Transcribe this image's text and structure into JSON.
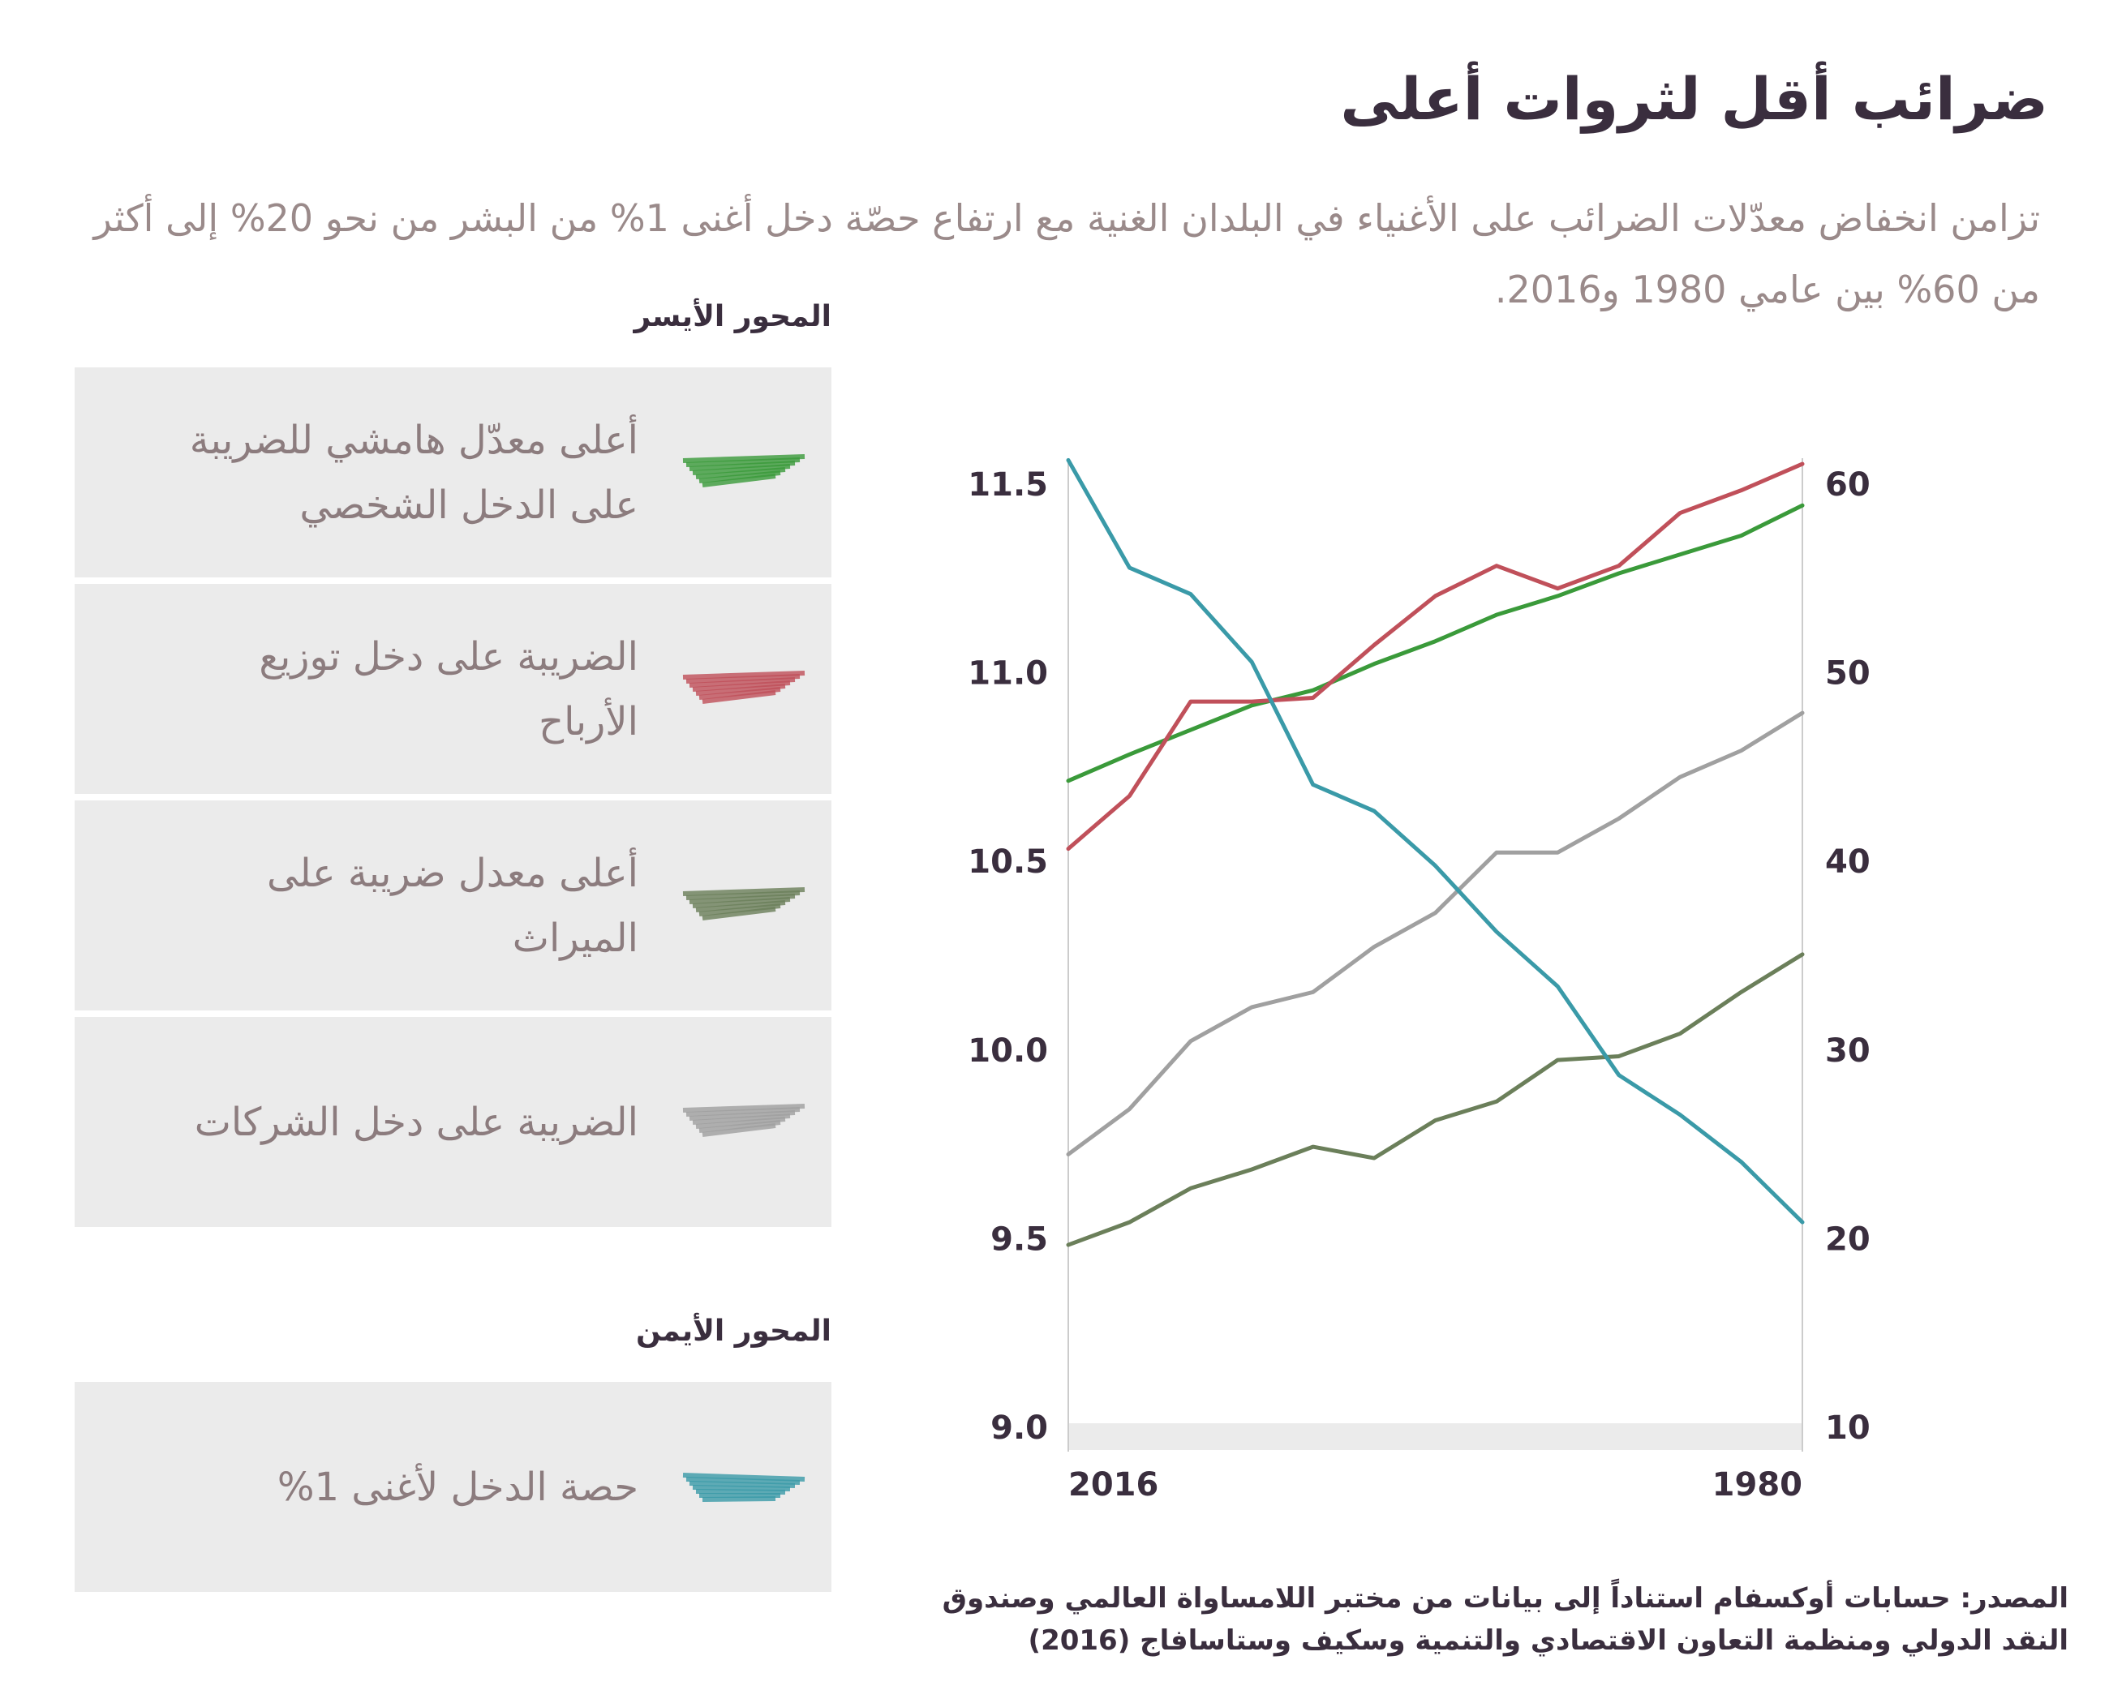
{
  "title": "ضرائب أقل لثروات أعلى",
  "subtitle": "تزامن انخفاض معدّلات الضرائب على الأغنياء في البلدان الغنية مع ارتفاع حصّة دخل أغنى 1% من البشر من نحو 20% إلى أكثر من 60% بين عامي 1980 و2016.",
  "source": "المصدر: حسابات أوكسفام استناداً إلى بيانات من مختبر اللامساواة العالمي وصندوق النقد الدولي ومنظمة التعاون الاقتصادي والتنمية وسكيف وستاسافاج (2016)",
  "chart_data": {
    "type": "line",
    "y_legend_title": "المحور الأيسر",
    "y2_legend_title": "المحور الأيمن",
    "x": [
      2016,
      2013,
      2010,
      2007,
      2004,
      2001,
      1998,
      1995,
      1992,
      1989,
      1986,
      1983,
      1980
    ],
    "xlim": [
      2016,
      1980
    ],
    "xticks": [
      2016,
      1980
    ],
    "ylim": [
      9,
      11.5
    ],
    "yticks": [
      {
        "value": 9,
        "label": "9.0"
      },
      9.5,
      {
        "value": 10,
        "label": "10.0"
      },
      10.5,
      {
        "value": 11,
        "label": "11.0"
      },
      11.5
    ],
    "y2lim": [
      10,
      60
    ],
    "y2ticks": [
      10,
      20,
      30,
      40,
      50,
      60
    ],
    "series": [
      {
        "name": "أعلى معدّل هامشي للضريبة على الدخل الشخصي",
        "color": "#3a9a3a",
        "values": [
          10.72,
          10.79,
          10.855,
          10.92,
          10.96,
          11.03,
          11.09,
          11.16,
          11.21,
          11.27,
          11.32,
          11.37,
          11.45
        ]
      },
      {
        "name": "الضريبة على دخل توزيع الأرباح",
        "color": "#c0505a",
        "values": [
          10.54,
          10.68,
          10.93,
          10.93,
          10.94,
          11.08,
          11.21,
          11.29,
          11.23,
          11.29,
          11.43,
          11.49,
          11.56
        ]
      },
      {
        "name": "أعلى معدل ضريبة على الميراث",
        "color": "#6b7f5a",
        "values": [
          9.49,
          9.55,
          9.64,
          9.69,
          9.75,
          9.72,
          9.82,
          9.87,
          9.98,
          9.99,
          10.05,
          10.16,
          10.26
        ]
      },
      {
        "name": "الضريبة على دخل الشركات",
        "color": "#a0a0a0",
        "values": [
          9.73,
          9.85,
          10.03,
          10.12,
          10.16,
          10.28,
          10.37,
          10.53,
          10.53,
          10.62,
          10.73,
          10.8,
          10.9
        ]
      },
      {
        "name": "حصة الدخل لأغنى 1%",
        "color": "#3a9aa8",
        "axis": "y2",
        "values": [
          61.4,
          55.7,
          54.3,
          50.7,
          44.2,
          42.8,
          39.9,
          36.4,
          33.5,
          28.8,
          26.7,
          24.2,
          21.0
        ]
      }
    ]
  }
}
